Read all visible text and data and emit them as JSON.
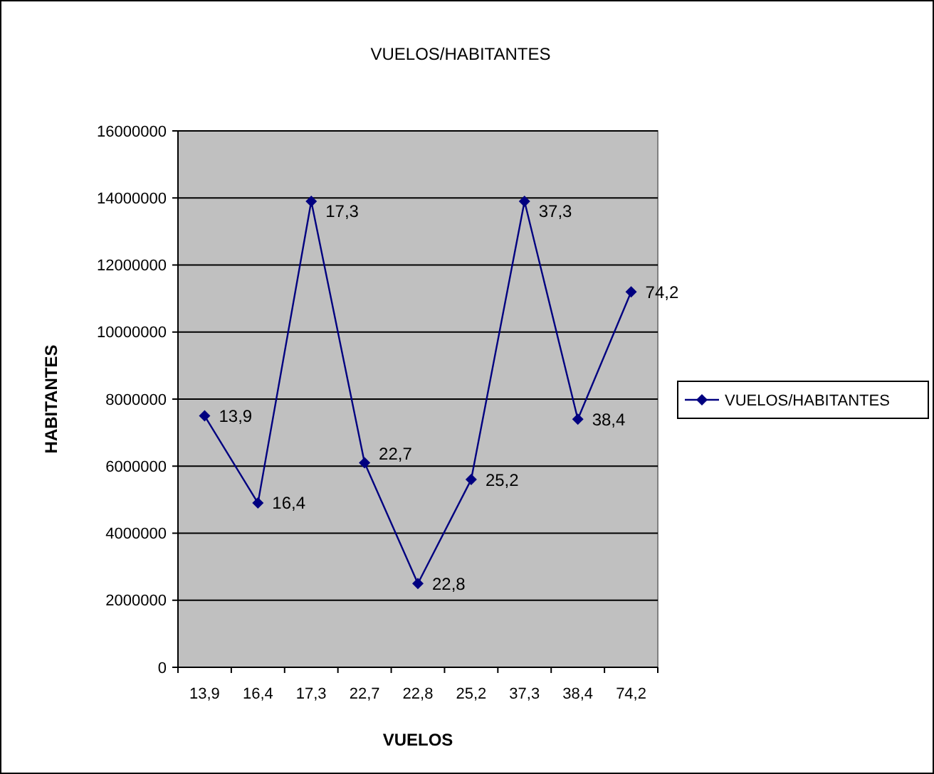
{
  "chart_data": {
    "type": "line",
    "title": "VUELOS/HABITANTES",
    "xlabel": "VUELOS",
    "ylabel": "HABITANTES",
    "categories": [
      "13,9",
      "16,4",
      "17,3",
      "22,7",
      "22,8",
      "25,2",
      "37,3",
      "38,4",
      "74,2"
    ],
    "series": [
      {
        "name": "VUELOS/HABITANTES",
        "color": "#000080",
        "values": [
          7500000,
          4900000,
          13900000,
          6100000,
          2500000,
          5600000,
          13900000,
          7400000,
          11200000
        ]
      }
    ],
    "ylim": [
      0,
      16000000
    ],
    "yticks": [
      0,
      2000000,
      4000000,
      6000000,
      8000000,
      10000000,
      12000000,
      14000000,
      16000000
    ],
    "grid": "y",
    "legend": "right",
    "marker": "diamond",
    "line_style": "solid",
    "annotations": [
      {
        "text": "13,9",
        "x": "13,9",
        "y": 7500000
      },
      {
        "text": "16,4",
        "x": "16,4",
        "y": 4900000
      },
      {
        "text": "17,3",
        "x": "17,3",
        "y": 13900000
      },
      {
        "text": "22,7",
        "x": "22,7",
        "y": 6100000
      },
      {
        "text": "22,8",
        "x": "22,8",
        "y": 2500000
      },
      {
        "text": "25,2",
        "x": "25,2",
        "y": 5600000
      },
      {
        "text": "37,3",
        "x": "37,3",
        "y": 13900000
      },
      {
        "text": "38,4",
        "x": "38,4",
        "y": 7400000
      },
      {
        "text": "74,2",
        "x": "74,2",
        "y": 11200000
      }
    ]
  }
}
